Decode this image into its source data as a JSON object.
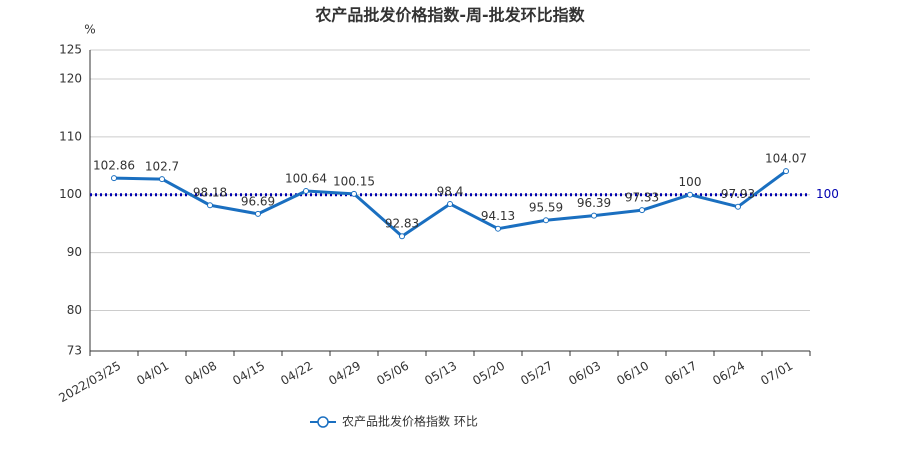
{
  "chart_data": {
    "type": "line",
    "title": "农产品批发价格指数-周-批发环比指数",
    "y_unit": "%",
    "categories": [
      "2022/03/25",
      "04/01",
      "04/08",
      "04/15",
      "04/22",
      "04/29",
      "05/06",
      "05/13",
      "05/20",
      "05/27",
      "06/03",
      "06/10",
      "06/17",
      "06/24",
      "07/01"
    ],
    "series": [
      {
        "name": "农产品批发价格指数  环比",
        "color": "#1a6fc0",
        "values": [
          102.86,
          102.7,
          98.18,
          96.69,
          100.64,
          100.15,
          92.83,
          98.4,
          94.13,
          95.59,
          96.39,
          97.33,
          100,
          97.93,
          104.07
        ]
      }
    ],
    "ylim": [
      73,
      125
    ],
    "yticks": [
      73,
      80,
      90,
      100,
      110,
      120,
      125
    ],
    "grid": true,
    "mark_line": 100,
    "mark_line_color": "#0000b0",
    "legend": "bottom"
  }
}
